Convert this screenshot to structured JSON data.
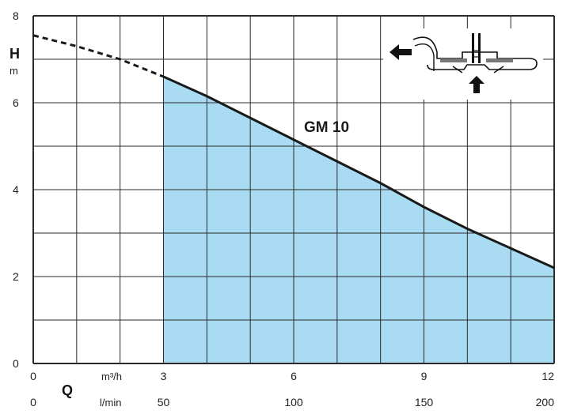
{
  "chart_data": {
    "type": "area",
    "x_primary": {
      "unit": "m³/h",
      "ticks": [
        0,
        3,
        6,
        9,
        12
      ],
      "range": [
        0,
        12
      ]
    },
    "x_secondary": {
      "title": "Q",
      "unit": "l/min",
      "ticks": [
        0,
        50,
        100,
        150,
        200
      ],
      "range": [
        0,
        200
      ]
    },
    "y": {
      "title": "H",
      "unit": "m",
      "ticks": [
        0,
        2,
        4,
        6,
        8
      ],
      "range": [
        0,
        8
      ]
    },
    "grid": true,
    "series": [
      {
        "name": "GM 10",
        "curve_x": [
          0,
          1,
          2,
          3,
          4,
          5,
          6,
          7,
          8,
          9,
          10,
          11,
          12
        ],
        "curve_y": [
          7.55,
          7.3,
          7.0,
          6.6,
          6.15,
          5.65,
          5.15,
          4.65,
          4.15,
          3.6,
          3.1,
          2.65,
          2.2
        ],
        "dashed_below_x": 3,
        "shaded_from_x": 3,
        "shaded_to_x": 12,
        "fill_color": "#a9dcf2"
      }
    ],
    "colors": {
      "fill": "#a9dcf2",
      "grid": "#2a2a2a",
      "curve": "#1a1a1a"
    },
    "inset_icon": "pump-flow-diagram-icon"
  }
}
